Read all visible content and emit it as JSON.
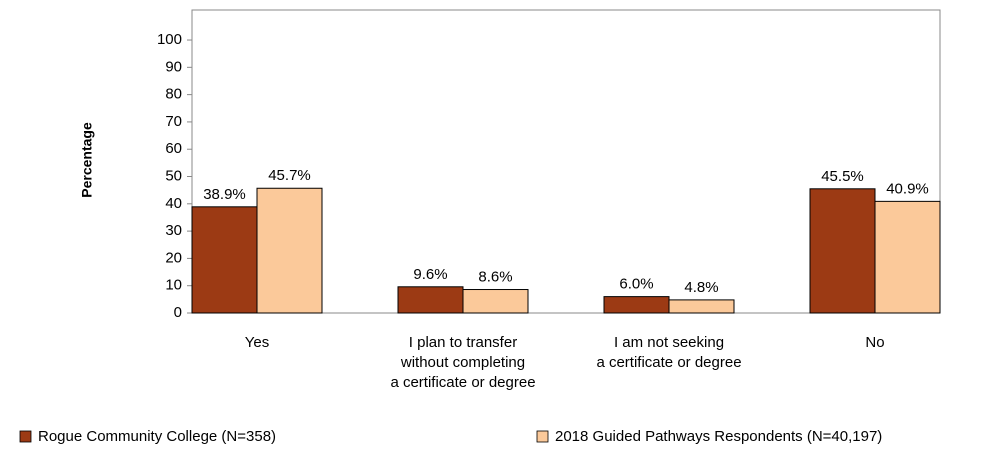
{
  "chart_data": {
    "type": "bar",
    "y_label": "Percentage",
    "categories": [
      "Yes",
      "I plan to transfer\nwithout completing\na certificate or degree",
      "I am not seeking\na certificate or degree",
      "No"
    ],
    "series": [
      {
        "name": "Rogue Community College (N=358)",
        "color": "#9c3a14",
        "values": [
          38.9,
          9.6,
          6.0,
          45.5
        ],
        "value_labels": [
          "38.9%",
          "9.6%",
          "6.0%",
          "45.5%"
        ]
      },
      {
        "name": "2018 Guided Pathways Respondents (N=40,197)",
        "color": "#fbc99a",
        "values": [
          45.7,
          8.6,
          4.8,
          40.9
        ],
        "value_labels": [
          "45.7%",
          "8.6%",
          "4.8%",
          "40.9%"
        ]
      }
    ],
    "ylim": [
      0,
      111
    ],
    "yticks": [
      0,
      10,
      20,
      30,
      40,
      50,
      60,
      70,
      80,
      90,
      100
    ],
    "legend": "bottom"
  }
}
